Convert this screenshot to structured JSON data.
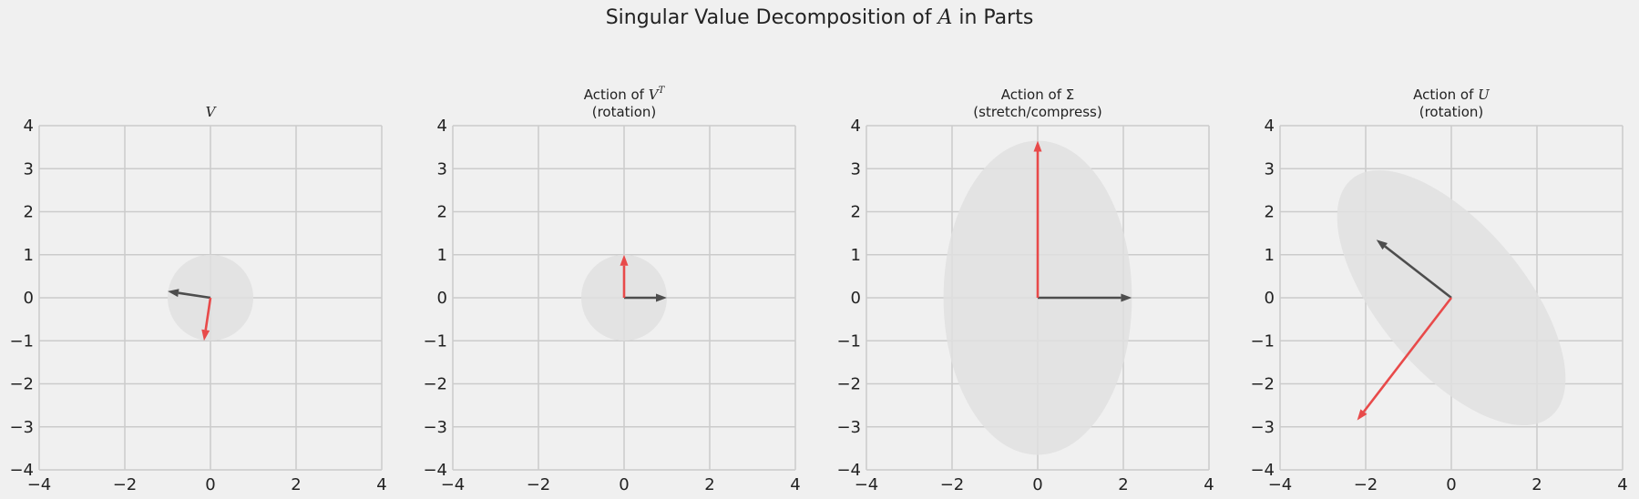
{
  "figure": {
    "suptitle_prefix": "Singular Value Decomposition of ",
    "suptitle_var": "A",
    "suptitle_suffix": " in Parts",
    "background": "#f0f0f0"
  },
  "colors": {
    "first_vector": "#4d4d4d",
    "second_vector": "#e84a4a",
    "ellipse_fill": "#e0e0e0",
    "grid": "#cbcbcb"
  },
  "chart_data": [
    {
      "type": "vector",
      "title_lines": [
        [
          "",
          "V",
          ""
        ]
      ],
      "xlim": [
        -4,
        4
      ],
      "ylim": [
        -4,
        4
      ],
      "xticks": [
        -4,
        -2,
        0,
        2,
        4
      ],
      "yticks": [
        -4,
        -3,
        -2,
        -1,
        0,
        1,
        2,
        3,
        4
      ],
      "ellipse": {
        "cx": 0,
        "cy": 0,
        "rx": 1,
        "ry": 1,
        "angle": 0
      },
      "vectors": [
        {
          "x": -1.0,
          "y": 0.15,
          "color": "#4d4d4d"
        },
        {
          "x": -0.15,
          "y": -1.0,
          "color": "#e84a4a"
        }
      ]
    },
    {
      "type": "vector",
      "title_lines": [
        [
          "Action of ",
          "V",
          "T"
        ],
        [
          "(rotation)",
          "",
          ""
        ]
      ],
      "xlim": [
        -4,
        4
      ],
      "ylim": [
        -4,
        4
      ],
      "xticks": [
        -4,
        -2,
        0,
        2,
        4
      ],
      "yticks": [
        -4,
        -3,
        -2,
        -1,
        0,
        1,
        2,
        3,
        4
      ],
      "ellipse": {
        "cx": 0,
        "cy": 0,
        "rx": 1,
        "ry": 1,
        "angle": 0
      },
      "vectors": [
        {
          "x": 1.0,
          "y": 0.0,
          "color": "#4d4d4d"
        },
        {
          "x": 0.0,
          "y": 1.0,
          "color": "#e84a4a"
        }
      ]
    },
    {
      "type": "vector",
      "title_lines": [
        [
          "Action of Σ",
          "",
          ""
        ],
        [
          "(stretch/compress)",
          "",
          ""
        ]
      ],
      "xlim": [
        -4,
        4
      ],
      "ylim": [
        -4,
        4
      ],
      "xticks": [
        -4,
        -2,
        0,
        2,
        4
      ],
      "yticks": [
        -4,
        -3,
        -2,
        -1,
        0,
        1,
        2,
        3,
        4
      ],
      "ellipse": {
        "cx": 0,
        "cy": 0,
        "rx": 2.2,
        "ry": 3.65,
        "angle": 0
      },
      "vectors": [
        {
          "x": 2.2,
          "y": 0.0,
          "color": "#4d4d4d"
        },
        {
          "x": 0.0,
          "y": 3.65,
          "color": "#e84a4a"
        }
      ]
    },
    {
      "type": "vector",
      "title_lines": [
        [
          "Action of ",
          "U",
          ""
        ],
        [
          "(rotation)",
          "",
          ""
        ]
      ],
      "xlim": [
        -4,
        4
      ],
      "ylim": [
        -4,
        4
      ],
      "xticks": [
        -4,
        -2,
        0,
        2,
        4
      ],
      "yticks": [
        -4,
        -3,
        -2,
        -1,
        0,
        1,
        2,
        3,
        4
      ],
      "ellipse": {
        "cx": 0,
        "cy": 0,
        "rx": 1.7,
        "ry": 3.6,
        "angle": -40
      },
      "vectors": [
        {
          "x": -1.75,
          "y": 1.35,
          "color": "#4d4d4d"
        },
        {
          "x": -2.2,
          "y": -2.85,
          "color": "#e84a4a"
        }
      ]
    }
  ]
}
